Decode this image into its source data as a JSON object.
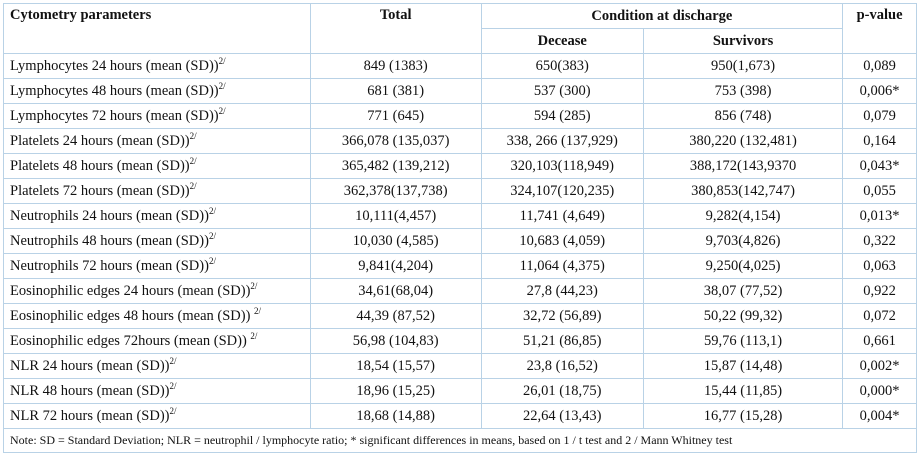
{
  "headers": {
    "param": "Cytometry parameters",
    "total": "Total",
    "condition": "Condition at discharge",
    "decease": "Decease",
    "survivors": "Survivors",
    "pvalue": "p-value"
  },
  "rows": [
    {
      "param": "Lymphocytes 24 hours (mean (SD))",
      "sup": "2/",
      "total": "849 (1383)",
      "decease": "650(383)",
      "survivors": "950(1,673)",
      "p": "0,089"
    },
    {
      "param": "Lymphocytes 48 hours (mean (SD))",
      "sup": "2/",
      "total": "681 (381)",
      "decease": "537 (300)",
      "survivors": "753 (398)",
      "p": "0,006*"
    },
    {
      "param": "Lymphocytes 72 hours (mean (SD))",
      "sup": "2/",
      "total": "771 (645)",
      "decease": "594 (285)",
      "survivors": "856 (748)",
      "p": "0,079"
    },
    {
      "param": "Platelets 24 hours (mean (SD))",
      "sup": "2/",
      "total": "366,078 (135,037)",
      "decease": "338, 266 (137,929)",
      "survivors": "380,220 (132,481)",
      "p": "0,164"
    },
    {
      "param": "Platelets 48 hours (mean (SD))",
      "sup": "2/",
      "total": "365,482 (139,212)",
      "decease": "320,103(118,949)",
      "survivors": "388,172(143,9370",
      "p": "0,043*"
    },
    {
      "param": "Platelets 72 hours (mean (SD))",
      "sup": "2/",
      "total": "362,378(137,738)",
      "decease": "324,107(120,235)",
      "survivors": "380,853(142,747)",
      "p": "0,055"
    },
    {
      "param": "Neutrophils 24 hours (mean (SD))",
      "sup": "2/",
      "total": "10,111(4,457)",
      "decease": "11,741 (4,649)",
      "survivors": "9,282(4,154)",
      "p": "0,013*"
    },
    {
      "param": "Neutrophils 48 hours (mean (SD))",
      "sup": "2/",
      "total": "10,030 (4,585)",
      "decease": "10,683 (4,059)",
      "survivors": "9,703(4,826)",
      "p": "0,322"
    },
    {
      "param": "Neutrophils 72 hours (mean (SD))",
      "sup": "2/",
      "total": "9,841(4,204)",
      "decease": "11,064 (4,375)",
      "survivors": "9,250(4,025)",
      "p": "0,063"
    },
    {
      "param": "Eosinophilic edges 24 hours (mean (SD))",
      "sup": "2/",
      "total": "34,61(68,04)",
      "decease": "27,8 (44,23)",
      "survivors": "38,07 (77,52)",
      "p": "0,922"
    },
    {
      "param": "Eosinophilic edges 48 hours (mean (SD)) ",
      "sup": "2/",
      "total": "44,39 (87,52)",
      "decease": "32,72 (56,89)",
      "survivors": "50,22 (99,32)",
      "p": "0,072"
    },
    {
      "param": "Eosinophilic edges 72hours (mean (SD)) ",
      "sup": "2/",
      "total": "56,98 (104,83)",
      "decease": "51,21 (86,85)",
      "survivors": "59,76 (113,1)",
      "p": "0,661"
    },
    {
      "param": "NLR 24 hours (mean (SD))",
      "sup": "2/",
      "total": "18,54 (15,57)",
      "decease": "23,8 (16,52)",
      "survivors": "15,87 (14,48)",
      "p": "0,002*"
    },
    {
      "param": "NLR 48 hours (mean (SD))",
      "sup": "2/",
      "total": "18,96 (15,25)",
      "decease": "26,01 (18,75)",
      "survivors": "15,44 (11,85)",
      "p": "0,000*"
    },
    {
      "param": "NLR 72 hours (mean (SD))",
      "sup": "2/",
      "total": "18,68 (14,88)",
      "decease": "22,64 (13,43)",
      "survivors": "16,77 (15,28)",
      "p": "0,004*"
    }
  ],
  "note": "Note: SD = Standard Deviation; NLR = neutrophil / lymphocyte ratio; * significant differences in means, based on 1 / t test and 2 / Mann Whitney test"
}
